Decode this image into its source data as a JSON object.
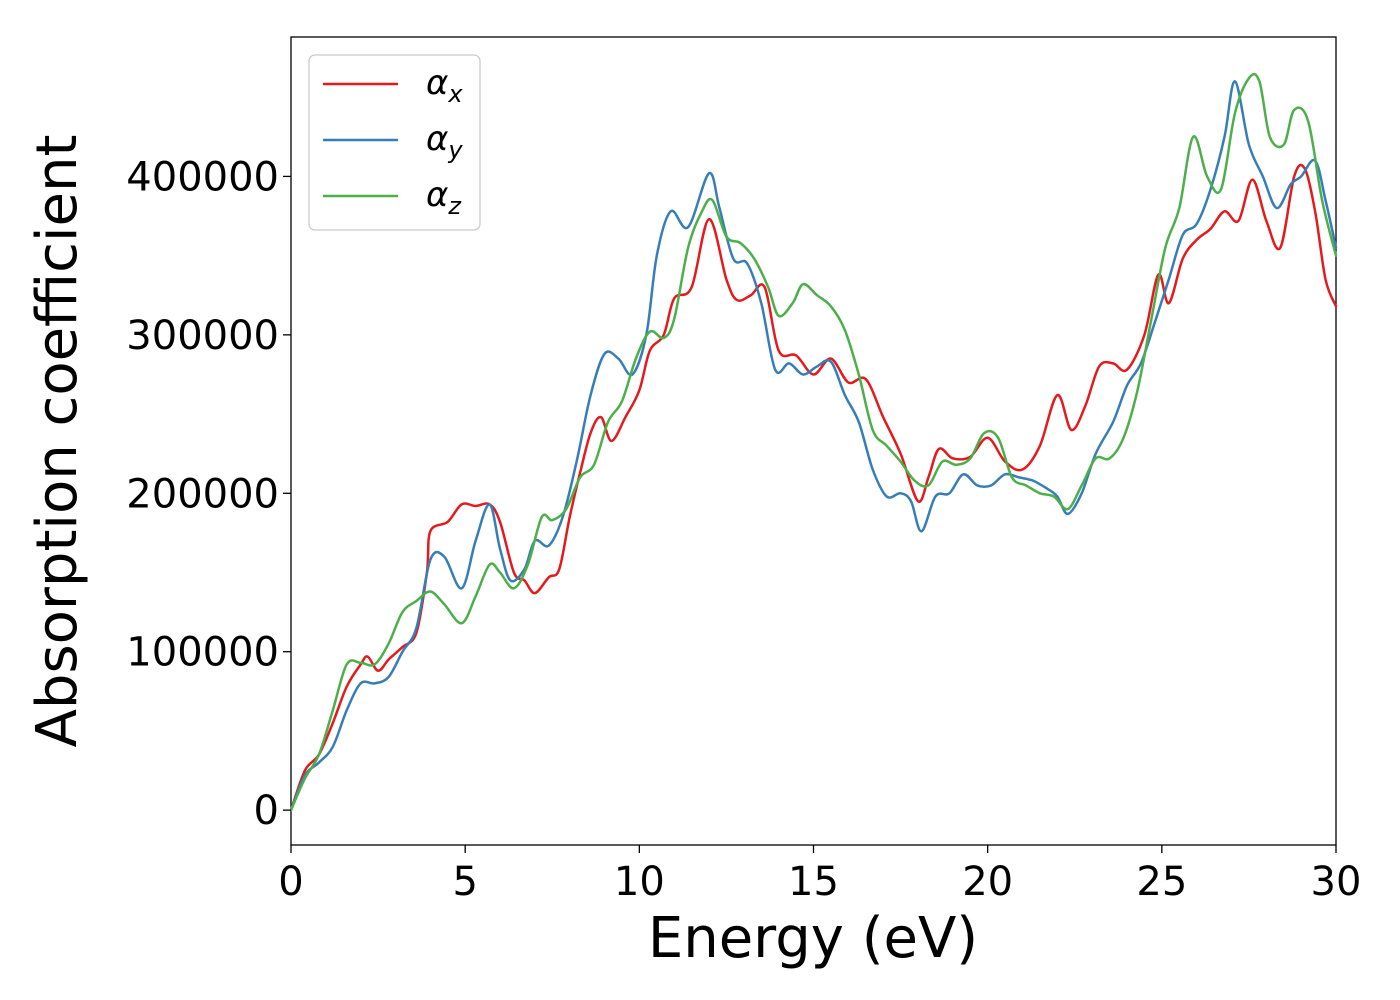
{
  "chart_data": {
    "type": "line",
    "xlabel": "Energy (eV)",
    "ylabel": "Absorption coefficient",
    "xlim": [
      0,
      30
    ],
    "ylim": [
      -22000,
      488000
    ],
    "xticks": [
      0,
      5,
      10,
      15,
      20,
      25,
      30
    ],
    "xtick_labels": [
      "0",
      "5",
      "10",
      "15",
      "20",
      "25",
      "30"
    ],
    "yticks": [
      0,
      100000,
      200000,
      300000,
      400000
    ],
    "ytick_labels": [
      "0",
      "100000",
      "200000",
      "300000",
      "400000"
    ],
    "grid": false,
    "legend_position": "top-left",
    "series": [
      {
        "name": "α",
        "subscript": "x",
        "color": "#e41a1c",
        "points": [
          [
            0,
            0
          ],
          [
            0.4,
            25000
          ],
          [
            0.8,
            35000
          ],
          [
            1.2,
            55000
          ],
          [
            1.6,
            78000
          ],
          [
            2.0,
            92000
          ],
          [
            2.2,
            97000
          ],
          [
            2.5,
            88000
          ],
          [
            2.8,
            95000
          ],
          [
            3.2,
            103000
          ],
          [
            3.6,
            112000
          ],
          [
            3.9,
            150000
          ],
          [
            4.0,
            176000
          ],
          [
            4.5,
            182000
          ],
          [
            4.9,
            193000
          ],
          [
            5.3,
            192000
          ],
          [
            5.7,
            193000
          ],
          [
            6.0,
            182000
          ],
          [
            6.4,
            150000
          ],
          [
            6.7,
            145000
          ],
          [
            7.0,
            137000
          ],
          [
            7.4,
            147000
          ],
          [
            7.7,
            152000
          ],
          [
            8.0,
            185000
          ],
          [
            8.3,
            213000
          ],
          [
            8.6,
            238000
          ],
          [
            8.9,
            248000
          ],
          [
            9.2,
            233000
          ],
          [
            9.6,
            248000
          ],
          [
            10.0,
            265000
          ],
          [
            10.3,
            290000
          ],
          [
            10.7,
            300000
          ],
          [
            11.0,
            323000
          ],
          [
            11.5,
            330000
          ],
          [
            12.0,
            373000
          ],
          [
            12.5,
            335000
          ],
          [
            12.8,
            322000
          ],
          [
            13.2,
            325000
          ],
          [
            13.6,
            330000
          ],
          [
            14.0,
            290000
          ],
          [
            14.5,
            287000
          ],
          [
            15.0,
            275000
          ],
          [
            15.5,
            285000
          ],
          [
            16.0,
            270000
          ],
          [
            16.5,
            272000
          ],
          [
            17.0,
            248000
          ],
          [
            17.5,
            225000
          ],
          [
            18.0,
            195000
          ],
          [
            18.3,
            210000
          ],
          [
            18.6,
            228000
          ],
          [
            19.0,
            222000
          ],
          [
            19.5,
            223000
          ],
          [
            20.0,
            235000
          ],
          [
            20.5,
            220000
          ],
          [
            21.0,
            215000
          ],
          [
            21.5,
            230000
          ],
          [
            22.0,
            262000
          ],
          [
            22.4,
            240000
          ],
          [
            22.8,
            255000
          ],
          [
            23.2,
            280000
          ],
          [
            23.6,
            282000
          ],
          [
            24.0,
            278000
          ],
          [
            24.5,
            300000
          ],
          [
            24.9,
            338000
          ],
          [
            25.2,
            320000
          ],
          [
            25.6,
            348000
          ],
          [
            26.0,
            360000
          ],
          [
            26.4,
            367000
          ],
          [
            26.8,
            378000
          ],
          [
            27.2,
            372000
          ],
          [
            27.6,
            398000
          ],
          [
            28.0,
            372000
          ],
          [
            28.4,
            355000
          ],
          [
            28.8,
            400000
          ],
          [
            29.1,
            405000
          ],
          [
            29.4,
            378000
          ],
          [
            29.7,
            335000
          ],
          [
            30.0,
            318000
          ]
        ]
      },
      {
        "name": "α",
        "subscript": "y",
        "color": "#377eb8",
        "points": [
          [
            0,
            0
          ],
          [
            0.4,
            22000
          ],
          [
            0.8,
            30000
          ],
          [
            1.2,
            40000
          ],
          [
            1.6,
            63000
          ],
          [
            2.0,
            80000
          ],
          [
            2.4,
            80000
          ],
          [
            2.8,
            84000
          ],
          [
            3.2,
            100000
          ],
          [
            3.6,
            115000
          ],
          [
            4.0,
            158000
          ],
          [
            4.4,
            160000
          ],
          [
            4.9,
            140000
          ],
          [
            5.3,
            170000
          ],
          [
            5.7,
            193000
          ],
          [
            6.0,
            165000
          ],
          [
            6.3,
            145000
          ],
          [
            6.7,
            152000
          ],
          [
            7.0,
            170000
          ],
          [
            7.4,
            167000
          ],
          [
            7.8,
            185000
          ],
          [
            8.2,
            220000
          ],
          [
            8.6,
            262000
          ],
          [
            9.0,
            288000
          ],
          [
            9.4,
            285000
          ],
          [
            9.8,
            275000
          ],
          [
            10.2,
            300000
          ],
          [
            10.5,
            350000
          ],
          [
            10.9,
            378000
          ],
          [
            11.4,
            368000
          ],
          [
            12.0,
            402000
          ],
          [
            12.3,
            380000
          ],
          [
            12.7,
            348000
          ],
          [
            13.1,
            345000
          ],
          [
            13.5,
            320000
          ],
          [
            13.9,
            278000
          ],
          [
            14.3,
            282000
          ],
          [
            14.7,
            275000
          ],
          [
            15.1,
            280000
          ],
          [
            15.5,
            283000
          ],
          [
            15.9,
            262000
          ],
          [
            16.3,
            245000
          ],
          [
            16.7,
            215000
          ],
          [
            17.1,
            198000
          ],
          [
            17.5,
            200000
          ],
          [
            17.8,
            195000
          ],
          [
            18.1,
            176000
          ],
          [
            18.5,
            198000
          ],
          [
            18.9,
            200000
          ],
          [
            19.3,
            212000
          ],
          [
            19.7,
            205000
          ],
          [
            20.1,
            205000
          ],
          [
            20.5,
            212000
          ],
          [
            20.9,
            210000
          ],
          [
            21.3,
            208000
          ],
          [
            21.7,
            203000
          ],
          [
            22.0,
            198000
          ],
          [
            22.3,
            187000
          ],
          [
            22.7,
            200000
          ],
          [
            23.1,
            225000
          ],
          [
            23.6,
            245000
          ],
          [
            24.0,
            268000
          ],
          [
            24.4,
            282000
          ],
          [
            24.8,
            308000
          ],
          [
            25.2,
            335000
          ],
          [
            25.6,
            363000
          ],
          [
            26.0,
            370000
          ],
          [
            26.4,
            392000
          ],
          [
            26.8,
            425000
          ],
          [
            27.1,
            460000
          ],
          [
            27.5,
            420000
          ],
          [
            27.9,
            400000
          ],
          [
            28.3,
            380000
          ],
          [
            28.7,
            395000
          ],
          [
            29.0,
            400000
          ],
          [
            29.4,
            410000
          ],
          [
            29.7,
            385000
          ],
          [
            30.0,
            355000
          ]
        ]
      },
      {
        "name": "α",
        "subscript": "z",
        "color": "#4daf4a",
        "points": [
          [
            0,
            0
          ],
          [
            0.4,
            20000
          ],
          [
            0.8,
            35000
          ],
          [
            1.2,
            63000
          ],
          [
            1.6,
            92000
          ],
          [
            2.0,
            93000
          ],
          [
            2.4,
            92000
          ],
          [
            2.8,
            105000
          ],
          [
            3.2,
            125000
          ],
          [
            3.6,
            132000
          ],
          [
            4.0,
            138000
          ],
          [
            4.4,
            130000
          ],
          [
            4.9,
            118000
          ],
          [
            5.3,
            135000
          ],
          [
            5.7,
            155000
          ],
          [
            6.0,
            150000
          ],
          [
            6.4,
            140000
          ],
          [
            6.8,
            155000
          ],
          [
            7.2,
            185000
          ],
          [
            7.5,
            183000
          ],
          [
            7.9,
            190000
          ],
          [
            8.3,
            210000
          ],
          [
            8.7,
            218000
          ],
          [
            9.1,
            245000
          ],
          [
            9.5,
            258000
          ],
          [
            9.9,
            285000
          ],
          [
            10.3,
            302000
          ],
          [
            10.7,
            298000
          ],
          [
            11.0,
            310000
          ],
          [
            11.4,
            355000
          ],
          [
            11.8,
            378000
          ],
          [
            12.1,
            385000
          ],
          [
            12.5,
            362000
          ],
          [
            12.9,
            358000
          ],
          [
            13.3,
            348000
          ],
          [
            13.7,
            330000
          ],
          [
            14.0,
            312000
          ],
          [
            14.4,
            320000
          ],
          [
            14.7,
            332000
          ],
          [
            15.1,
            325000
          ],
          [
            15.5,
            318000
          ],
          [
            15.9,
            303000
          ],
          [
            16.3,
            275000
          ],
          [
            16.7,
            240000
          ],
          [
            17.1,
            230000
          ],
          [
            17.5,
            220000
          ],
          [
            17.9,
            208000
          ],
          [
            18.3,
            205000
          ],
          [
            18.7,
            220000
          ],
          [
            19.1,
            218000
          ],
          [
            19.5,
            222000
          ],
          [
            19.9,
            238000
          ],
          [
            20.3,
            235000
          ],
          [
            20.7,
            210000
          ],
          [
            21.1,
            205000
          ],
          [
            21.5,
            200000
          ],
          [
            21.9,
            198000
          ],
          [
            22.3,
            190000
          ],
          [
            22.7,
            205000
          ],
          [
            23.1,
            222000
          ],
          [
            23.5,
            222000
          ],
          [
            23.9,
            235000
          ],
          [
            24.3,
            265000
          ],
          [
            24.7,
            310000
          ],
          [
            25.1,
            355000
          ],
          [
            25.5,
            380000
          ],
          [
            25.9,
            425000
          ],
          [
            26.3,
            400000
          ],
          [
            26.7,
            392000
          ],
          [
            27.1,
            440000
          ],
          [
            27.5,
            462000
          ],
          [
            27.8,
            460000
          ],
          [
            28.1,
            425000
          ],
          [
            28.5,
            420000
          ],
          [
            28.8,
            442000
          ],
          [
            29.2,
            435000
          ],
          [
            29.6,
            385000
          ],
          [
            30.0,
            350000
          ]
        ]
      }
    ]
  }
}
